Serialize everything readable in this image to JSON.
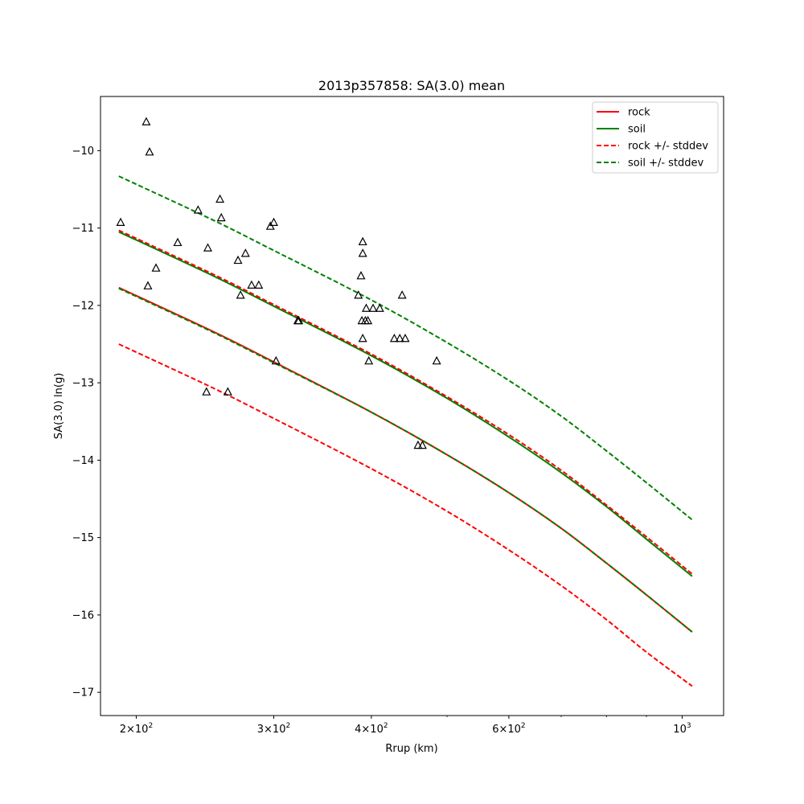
{
  "chart_data": {
    "type": "line",
    "title": "2013p357858: SA(3.0) mean",
    "xlabel": "Rrup (km)",
    "ylabel": "SA(3.0) ln(g)",
    "x_scale": "log",
    "xlim": [
      180,
      1130
    ],
    "ylim": [
      -17.3,
      -9.3
    ],
    "grid": false,
    "legend_position": "top-right",
    "x_ticks": [
      {
        "value": 200,
        "base": "2×10",
        "exp": "2"
      },
      {
        "value": 300,
        "base": "3×10",
        "exp": "2"
      },
      {
        "value": 400,
        "base": "4×10",
        "exp": "2"
      },
      {
        "value": 600,
        "base": "6×10",
        "exp": "2"
      },
      {
        "value": 1000,
        "base": "10",
        "exp": "3"
      }
    ],
    "x_minor_ticks": [
      500,
      700,
      800,
      900
    ],
    "y_ticks": [
      {
        "value": -10,
        "label": "−10"
      },
      {
        "value": -11,
        "label": "−11"
      },
      {
        "value": -12,
        "label": "−12"
      },
      {
        "value": -13,
        "label": "−13"
      },
      {
        "value": -14,
        "label": "−14"
      },
      {
        "value": -15,
        "label": "−15"
      },
      {
        "value": -16,
        "label": "−16"
      },
      {
        "value": -17,
        "label": "−17"
      }
    ],
    "x": [
      190,
      250,
      300,
      400,
      500,
      600,
      700,
      800,
      900,
      1030
    ],
    "series": [
      {
        "name": "rock",
        "color": "#ff0000",
        "dash": "solid",
        "values": [
          -11.77,
          -12.33,
          -12.73,
          -13.38,
          -13.93,
          -14.42,
          -14.88,
          -15.33,
          -15.74,
          -16.22
        ]
      },
      {
        "name": "soil",
        "color": "#008000",
        "dash": "solid",
        "values": [
          -11.05,
          -11.61,
          -12.01,
          -12.65,
          -13.2,
          -13.7,
          -14.16,
          -14.6,
          -15.02,
          -15.5
        ]
      },
      {
        "name": "rock +/- stddev",
        "color": "#ff0000",
        "dash": "dashed",
        "values": [
          -11.03,
          -11.59,
          -11.99,
          -12.63,
          -13.18,
          -13.67,
          -14.13,
          -14.58,
          -14.99,
          -15.47
        ]
      },
      {
        "name": "rock +/- stddev",
        "color": "#ff0000",
        "dash": "dashed",
        "legend": false,
        "values": [
          -12.5,
          -13.06,
          -13.46,
          -14.11,
          -14.66,
          -15.16,
          -15.62,
          -16.06,
          -16.48,
          -16.92
        ]
      },
      {
        "name": "soil +/- stddev",
        "color": "#008000",
        "dash": "dashed",
        "values": [
          -10.33,
          -10.89,
          -11.29,
          -11.93,
          -12.48,
          -12.97,
          -13.43,
          -13.88,
          -14.29,
          -14.77
        ]
      },
      {
        "name": "soil +/- stddev",
        "color": "#008000",
        "dash": "dashed",
        "legend": false,
        "values": [
          -11.78,
          -12.34,
          -12.74,
          -13.38,
          -13.93,
          -14.42,
          -14.88,
          -15.33,
          -15.74,
          -16.22
        ]
      }
    ],
    "observations": {
      "marker": "triangle",
      "color": "#000000",
      "points": [
        [
          191,
          -10.93
        ],
        [
          206,
          -9.63
        ],
        [
          208,
          -10.02
        ],
        [
          207,
          -11.75
        ],
        [
          212,
          -11.52
        ],
        [
          226,
          -11.19
        ],
        [
          240,
          -10.77
        ],
        [
          247,
          -11.26
        ],
        [
          246,
          -13.12
        ],
        [
          256,
          -10.63
        ],
        [
          257,
          -10.87
        ],
        [
          262,
          -13.12
        ],
        [
          270,
          -11.42
        ],
        [
          272,
          -11.87
        ],
        [
          276,
          -11.33
        ],
        [
          281,
          -11.74
        ],
        [
          287,
          -11.74
        ],
        [
          297,
          -10.98
        ],
        [
          300,
          -10.93
        ],
        [
          302,
          -12.72
        ],
        [
          322,
          -12.2
        ],
        [
          323,
          -12.2
        ],
        [
          385,
          -11.87
        ],
        [
          388,
          -11.62
        ],
        [
          389,
          -12.2
        ],
        [
          390,
          -11.18
        ],
        [
          390,
          -11.33
        ],
        [
          390,
          -12.43
        ],
        [
          393,
          -12.2
        ],
        [
          394,
          -12.04
        ],
        [
          396,
          -12.2
        ],
        [
          397,
          -12.72
        ],
        [
          402,
          -12.04
        ],
        [
          410,
          -12.04
        ],
        [
          428,
          -12.43
        ],
        [
          435,
          -12.43
        ],
        [
          438,
          -11.87
        ],
        [
          442,
          -12.43
        ],
        [
          459,
          -13.81
        ],
        [
          465,
          -13.81
        ],
        [
          485,
          -12.72
        ]
      ]
    }
  }
}
